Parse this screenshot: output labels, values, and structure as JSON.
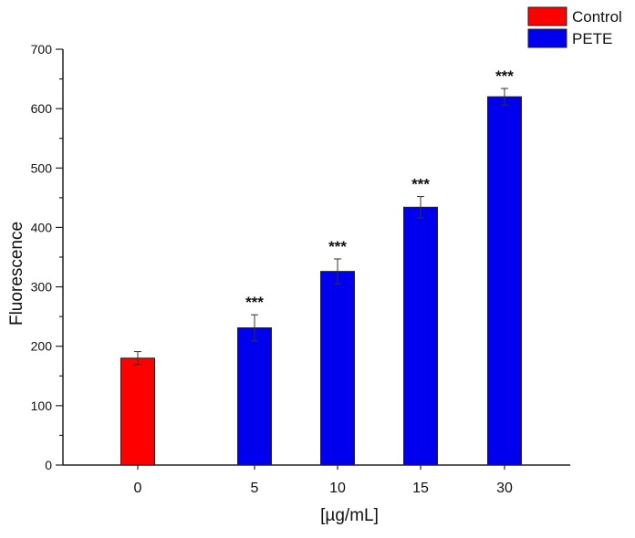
{
  "chart_data": {
    "type": "bar",
    "title": "",
    "xlabel": "[µg/mL]",
    "ylabel": "Fluorescence",
    "ylim": [
      0,
      700
    ],
    "yticks": [
      0,
      100,
      200,
      300,
      400,
      500,
      600,
      700
    ],
    "categories": [
      "0",
      "5",
      "10",
      "15",
      "30"
    ],
    "series": [
      {
        "name": "Control",
        "color": "#ff0000",
        "values": [
          180,
          null,
          null,
          null,
          null
        ],
        "errors": [
          11,
          null,
          null,
          null,
          null
        ]
      },
      {
        "name": "PETE",
        "color": "#0000ee",
        "values": [
          null,
          231,
          326,
          434,
          620
        ],
        "errors": [
          null,
          22,
          21,
          18,
          14
        ]
      }
    ],
    "annotations": [
      "",
      "***",
      "***",
      "***",
      "***"
    ],
    "legend": "top-right",
    "grid": false
  }
}
